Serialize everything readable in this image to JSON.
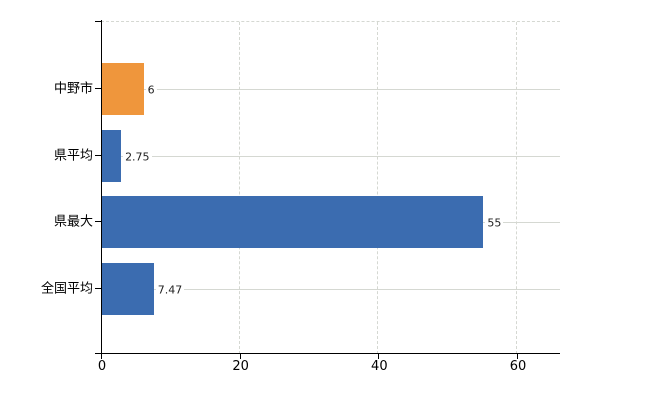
{
  "chart_data": {
    "type": "bar",
    "orientation": "horizontal",
    "categories": [
      "中野市",
      "県平均",
      "県最大",
      "全国平均"
    ],
    "values": [
      6,
      2.75,
      55,
      7.47
    ],
    "value_labels": [
      "6",
      "2.75",
      "55",
      "7.47"
    ],
    "series": [
      {
        "name": "中野市",
        "value": 6,
        "color": "#ef963c"
      },
      {
        "name": "県平均",
        "value": 2.75,
        "color": "#3b6cb0"
      },
      {
        "name": "県最大",
        "value": 55,
        "color": "#3b6cb0"
      },
      {
        "name": "全国平均",
        "value": 7.47,
        "color": "#3b6cb0"
      }
    ],
    "bar_colors": [
      "#ef963c",
      "#3b6cb0",
      "#3b6cb0",
      "#3b6cb0"
    ],
    "highlight_color": "#ef963c",
    "base_color": "#3b6cb0",
    "x_ticks": [
      0,
      20,
      40,
      60
    ],
    "xlim": [
      0,
      66.2
    ],
    "grid": true,
    "gridline_color": "#d5d8d2",
    "axis_color": "#000000",
    "value_label_color": "#222222",
    "tick_label_color": "#000000",
    "background": "#ffffff",
    "legend": "none",
    "title": ""
  }
}
